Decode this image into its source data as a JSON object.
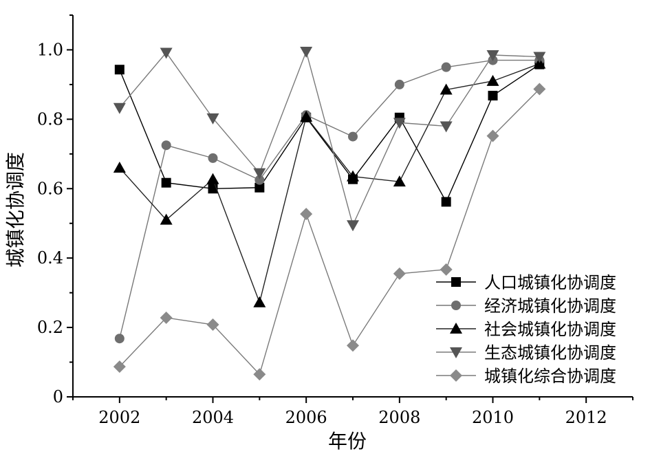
{
  "chart_data": {
    "type": "line",
    "xlabel": "年份",
    "ylabel": "城镇化协调度",
    "xlim": [
      2001,
      2013
    ],
    "ylim": [
      0,
      1.1
    ],
    "x_ticks": [
      "2002",
      "2004",
      "2006",
      "2008",
      "2010",
      "2012"
    ],
    "y_ticks": [
      "0",
      "0.2",
      "0.4",
      "0.6",
      "0.8",
      "1.0"
    ],
    "x": [
      2002,
      2003,
      2004,
      2005,
      2006,
      2007,
      2008,
      2009,
      2010,
      2011
    ],
    "grid": false,
    "legend_position": "bottom-right",
    "series": [
      {
        "name": "人口城镇化协调度",
        "marker": "square",
        "color": "#000000",
        "marker_color": "#000000",
        "values": [
          0.943,
          0.617,
          0.6,
          0.603,
          0.805,
          0.627,
          0.805,
          0.562,
          0.868,
          0.958
        ]
      },
      {
        "name": "经济城镇化协调度",
        "marker": "circle",
        "color": "#777777",
        "marker_color": "#6e6e6e",
        "values": [
          0.168,
          0.725,
          0.688,
          0.625,
          0.812,
          0.75,
          0.9,
          0.95,
          0.97,
          0.97
        ]
      },
      {
        "name": "社会城镇化协调度",
        "marker": "triangle-up",
        "color": "#222222",
        "marker_color": "#000000",
        "values": [
          0.66,
          0.51,
          0.627,
          0.272,
          0.807,
          0.635,
          0.62,
          0.885,
          0.91,
          0.96
        ]
      },
      {
        "name": "生态城镇化协调度",
        "marker": "triangle-down",
        "color": "#7a7a7a",
        "marker_color": "#555555",
        "values": [
          0.833,
          0.992,
          0.803,
          0.645,
          0.995,
          0.495,
          0.79,
          0.78,
          0.985,
          0.98
        ]
      },
      {
        "name": "城镇化综合协调度",
        "marker": "diamond",
        "color": "#7a7a7a",
        "marker_color": "#8a8a8a",
        "values": [
          0.087,
          0.228,
          0.208,
          0.065,
          0.527,
          0.148,
          0.355,
          0.367,
          0.752,
          0.887
        ]
      }
    ]
  }
}
